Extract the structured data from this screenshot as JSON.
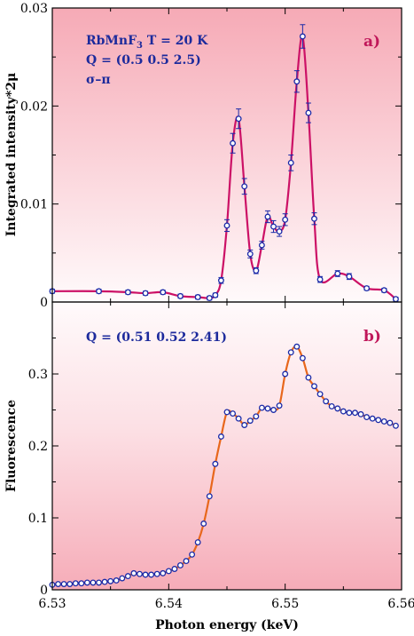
{
  "chart_data": [
    {
      "type": "line",
      "panel_label": "a)",
      "annotations": [
        "RbMnF₃ T = 20 K",
        "Q = (0.5  0.5  2.5)",
        "σ–π"
      ],
      "ylabel": "Integrated intensity*2μ",
      "xlim": [
        6.53,
        6.56
      ],
      "ylim": [
        0,
        0.03
      ],
      "yticks": [
        0,
        0.01,
        0.02,
        0.03
      ],
      "ytick_labels": [
        "0",
        "0.01",
        "0.02",
        "0.03"
      ],
      "series": [
        {
          "line_color": "#cc1166",
          "marker_color": "#1a2aa8",
          "error_bars": true,
          "x": [
            6.53,
            6.534,
            6.5365,
            6.538,
            6.5395,
            6.541,
            6.5425,
            6.5435,
            6.544,
            6.5445,
            6.545,
            6.5455,
            6.546,
            6.5465,
            6.547,
            6.5475,
            6.548,
            6.5485,
            6.549,
            6.5495,
            6.55,
            6.5505,
            6.551,
            6.5515,
            6.552,
            6.5525,
            6.553,
            6.5545,
            6.5555,
            6.557,
            6.5585,
            6.5595
          ],
          "y": [
            0.0011,
            0.0011,
            0.001,
            0.0009,
            0.001,
            0.0006,
            0.0005,
            0.0004,
            0.0007,
            0.0022,
            0.0078,
            0.0162,
            0.0187,
            0.0118,
            0.0049,
            0.0032,
            0.0058,
            0.0087,
            0.0077,
            0.0072,
            0.0084,
            0.0142,
            0.0225,
            0.0271,
            0.0193,
            0.0085,
            0.0023,
            0.0029,
            0.0026,
            0.0014,
            0.0012,
            0.0003
          ],
          "yerr": [
            0.0002,
            0.0002,
            0.0002,
            0.0002,
            0.0002,
            0.0002,
            0.0002,
            0.0002,
            0.0002,
            0.0003,
            0.0006,
            0.001,
            0.001,
            0.0008,
            0.0004,
            0.0003,
            0.0004,
            0.0006,
            0.0006,
            0.0005,
            0.0006,
            0.0008,
            0.0011,
            0.0012,
            0.001,
            0.0006,
            0.0003,
            0.0003,
            0.0003,
            0.0002,
            0.0002,
            0.0002
          ]
        }
      ]
    },
    {
      "type": "line",
      "panel_label": "b)",
      "annotations": [
        "Q = (0.51  0.52  2.41)"
      ],
      "xlabel": "Photon energy (keV)",
      "ylabel": "Fluorescence",
      "xlim": [
        6.53,
        6.56
      ],
      "ylim": [
        0,
        0.4
      ],
      "xticks": [
        6.53,
        6.54,
        6.55,
        6.56
      ],
      "xtick_labels": [
        "6.53",
        "6.54",
        "6.55",
        "6.56"
      ],
      "yticks": [
        0,
        0.1,
        0.2,
        0.3
      ],
      "ytick_labels": [
        "0",
        "0.1",
        "0.2",
        "0.3"
      ],
      "series": [
        {
          "line_color": "#e8671c",
          "marker_color": "#1a2aa8",
          "x": [
            6.53,
            6.5305,
            6.531,
            6.5315,
            6.532,
            6.5325,
            6.533,
            6.5335,
            6.534,
            6.5345,
            6.535,
            6.5355,
            6.536,
            6.5365,
            6.537,
            6.5375,
            6.538,
            6.5385,
            6.539,
            6.5395,
            6.54,
            6.5405,
            6.541,
            6.5415,
            6.542,
            6.5425,
            6.543,
            6.5435,
            6.544,
            6.5445,
            6.545,
            6.5455,
            6.546,
            6.5465,
            6.547,
            6.5475,
            6.548,
            6.5485,
            6.549,
            6.5495,
            6.55,
            6.5505,
            6.551,
            6.5515,
            6.552,
            6.5525,
            6.553,
            6.5535,
            6.554,
            6.5545,
            6.555,
            6.5555,
            6.556,
            6.5565,
            6.557,
            6.5575,
            6.558,
            6.5585,
            6.559,
            6.5595
          ],
          "y": [
            0.007,
            0.008,
            0.008,
            0.008,
            0.009,
            0.009,
            0.01,
            0.01,
            0.01,
            0.011,
            0.012,
            0.013,
            0.016,
            0.019,
            0.023,
            0.022,
            0.021,
            0.021,
            0.022,
            0.023,
            0.026,
            0.029,
            0.034,
            0.04,
            0.049,
            0.066,
            0.092,
            0.13,
            0.175,
            0.213,
            0.247,
            0.245,
            0.238,
            0.229,
            0.235,
            0.241,
            0.253,
            0.252,
            0.25,
            0.256,
            0.3,
            0.33,
            0.338,
            0.322,
            0.295,
            0.283,
            0.272,
            0.262,
            0.255,
            0.252,
            0.248,
            0.246,
            0.246,
            0.244,
            0.24,
            0.238,
            0.236,
            0.234,
            0.232,
            0.228
          ]
        }
      ]
    }
  ]
}
